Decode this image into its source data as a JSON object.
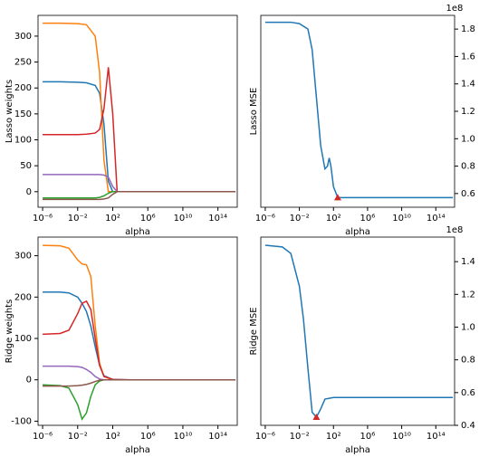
{
  "chart_data": [
    {
      "type": "line",
      "xscale": "log",
      "xlabel": "alpha",
      "ylabel": "Lasso weights",
      "yaxis_side": "left",
      "xlim": [
        3e-07,
        1.6e+16
      ],
      "xticks": [
        {
          "value": 1e-06,
          "label": "10⁻⁶"
        },
        {
          "value": 0.01,
          "label": "10⁻²"
        },
        {
          "value": 100,
          "label": "10²"
        },
        {
          "value": 1000000.0,
          "label": "10⁶"
        },
        {
          "value": 10000000000.0,
          "label": "10¹⁰"
        },
        {
          "value": 100000000000000.0,
          "label": "10¹⁴"
        }
      ],
      "ylim": [
        -30,
        340
      ],
      "yticks": [
        0,
        50,
        100,
        150,
        200,
        250,
        300
      ],
      "x": [
        1e-06,
        0.0001,
        0.01,
        0.1,
        1,
        3.16,
        10,
        31.6,
        100,
        316,
        1000,
        1000000.0,
        10000000000.0,
        1e+16
      ],
      "series": [
        {
          "color": "#1f77b4",
          "values": [
            212,
            212,
            211,
            210,
            205,
            190,
            130,
            20,
            0,
            0,
            0,
            0,
            0,
            0
          ]
        },
        {
          "color": "#ff7f0e",
          "values": [
            325,
            325,
            324,
            322,
            300,
            230,
            60,
            0,
            0,
            0,
            0,
            0,
            0,
            0
          ]
        },
        {
          "color": "#2ca02c",
          "values": [
            -12,
            -12,
            -12,
            -12,
            -12,
            -11,
            -8,
            -3,
            0,
            0,
            0,
            0,
            0,
            0
          ]
        },
        {
          "color": "#d62728",
          "values": [
            110,
            110,
            110,
            111,
            113,
            120,
            160,
            240,
            150,
            0,
            0,
            0,
            0,
            0
          ]
        },
        {
          "color": "#9467bd",
          "values": [
            33,
            33,
            33,
            33,
            33,
            33,
            32,
            28,
            10,
            0,
            0,
            0,
            0,
            0
          ]
        },
        {
          "color": "#8c564b",
          "values": [
            -15,
            -15,
            -15,
            -15,
            -15,
            -15,
            -14,
            -12,
            -5,
            0,
            0,
            0,
            0,
            0
          ]
        }
      ]
    },
    {
      "type": "line",
      "xscale": "log",
      "xlabel": "alpha",
      "ylabel": "Lasso MSE",
      "yaxis_side": "right",
      "offset_text": "1e8",
      "xlim": [
        3e-07,
        1.6e+16
      ],
      "xticks": [
        {
          "value": 1e-06,
          "label": "10⁻⁶"
        },
        {
          "value": 0.01,
          "label": "10⁻²"
        },
        {
          "value": 100,
          "label": "10²"
        },
        {
          "value": 1000000.0,
          "label": "10⁶"
        },
        {
          "value": 10000000000.0,
          "label": "10¹⁰"
        },
        {
          "value": 100000000000000.0,
          "label": "10¹⁴"
        }
      ],
      "ylim": [
        0.5,
        1.9
      ],
      "yticks": [
        0.6,
        0.8,
        {
          "value": 1,
          "label": "1.0"
        },
        1.2,
        1.4,
        1.6,
        1.8
      ],
      "x": [
        1e-06,
        0.001,
        0.01,
        0.1,
        0.316,
        1,
        3.16,
        10,
        20,
        31.6,
        50,
        100,
        316,
        1000,
        1e+16
      ],
      "series": [
        {
          "color": "#1f77b4",
          "values": [
            1.85,
            1.85,
            1.84,
            1.8,
            1.65,
            1.3,
            0.95,
            0.78,
            0.8,
            0.86,
            0.8,
            0.65,
            0.57,
            0.57,
            0.57
          ]
        }
      ],
      "min_point": {
        "x": 316,
        "y": 0.57,
        "color": "#d62728"
      }
    },
    {
      "type": "line",
      "xscale": "log",
      "xlabel": "alpha",
      "ylabel": "Ridge weights",
      "yaxis_side": "left",
      "xlim": [
        3e-07,
        1.6e+16
      ],
      "xticks": [
        {
          "value": 1e-06,
          "label": "10⁻⁶"
        },
        {
          "value": 0.01,
          "label": "10⁻²"
        },
        {
          "value": 100,
          "label": "10²"
        },
        {
          "value": 1000000.0,
          "label": "10⁶"
        },
        {
          "value": 10000000000.0,
          "label": "10¹⁰"
        },
        {
          "value": 100000000000000.0,
          "label": "10¹⁴"
        }
      ],
      "ylim": [
        -110,
        345
      ],
      "yticks": [
        -100,
        0,
        100,
        200,
        300
      ],
      "x": [
        1e-06,
        0.0001,
        0.001,
        0.01,
        0.0316,
        0.1,
        0.316,
        1,
        3.16,
        10,
        100,
        10000.0,
        1e+16
      ],
      "series": [
        {
          "color": "#1f77b4",
          "values": [
            212,
            212,
            210,
            200,
            185,
            165,
            130,
            80,
            35,
            10,
            1,
            0,
            0
          ]
        },
        {
          "color": "#ff7f0e",
          "values": [
            325,
            324,
            318,
            290,
            280,
            278,
            250,
            130,
            40,
            8,
            0,
            0,
            0
          ]
        },
        {
          "color": "#2ca02c",
          "values": [
            -12,
            -14,
            -20,
            -60,
            -95,
            -80,
            -40,
            -12,
            -3,
            0,
            0,
            0,
            0
          ]
        },
        {
          "color": "#d62728",
          "values": [
            110,
            112,
            120,
            160,
            185,
            190,
            170,
            100,
            35,
            8,
            1,
            0,
            0
          ]
        },
        {
          "color": "#9467bd",
          "values": [
            33,
            33,
            33,
            32,
            30,
            25,
            18,
            8,
            2,
            0,
            0,
            0,
            0
          ]
        },
        {
          "color": "#8c564b",
          "values": [
            -15,
            -15,
            -15,
            -14,
            -13,
            -11,
            -8,
            -4,
            -1,
            0,
            0,
            0,
            0
          ]
        }
      ]
    },
    {
      "type": "line",
      "xscale": "log",
      "xlabel": "alpha",
      "ylabel": "Ridge MSE",
      "yaxis_side": "right",
      "offset_text": "1e8",
      "xlim": [
        3e-07,
        1.6e+16
      ],
      "xticks": [
        {
          "value": 1e-06,
          "label": "10⁻⁶"
        },
        {
          "value": 0.01,
          "label": "10⁻²"
        },
        {
          "value": 100,
          "label": "10²"
        },
        {
          "value": 1000000.0,
          "label": "10⁶"
        },
        {
          "value": 10000000000.0,
          "label": "10¹⁰"
        },
        {
          "value": 100000000000000.0,
          "label": "10¹⁴"
        }
      ],
      "ylim": [
        0.4,
        1.55
      ],
      "yticks": [
        0.4,
        0.6,
        0.8,
        {
          "value": 1,
          "label": "1.0"
        },
        1.2,
        1.4
      ],
      "x": [
        1e-06,
        0.0001,
        0.001,
        0.01,
        0.03,
        0.1,
        0.316,
        1,
        3.16,
        10,
        100,
        1e+16
      ],
      "series": [
        {
          "color": "#1f77b4",
          "values": [
            1.5,
            1.49,
            1.45,
            1.25,
            1.05,
            0.75,
            0.48,
            0.45,
            0.5,
            0.56,
            0.57,
            0.57
          ]
        }
      ],
      "min_point": {
        "x": 1,
        "y": 0.45,
        "color": "#d62728"
      }
    }
  ]
}
